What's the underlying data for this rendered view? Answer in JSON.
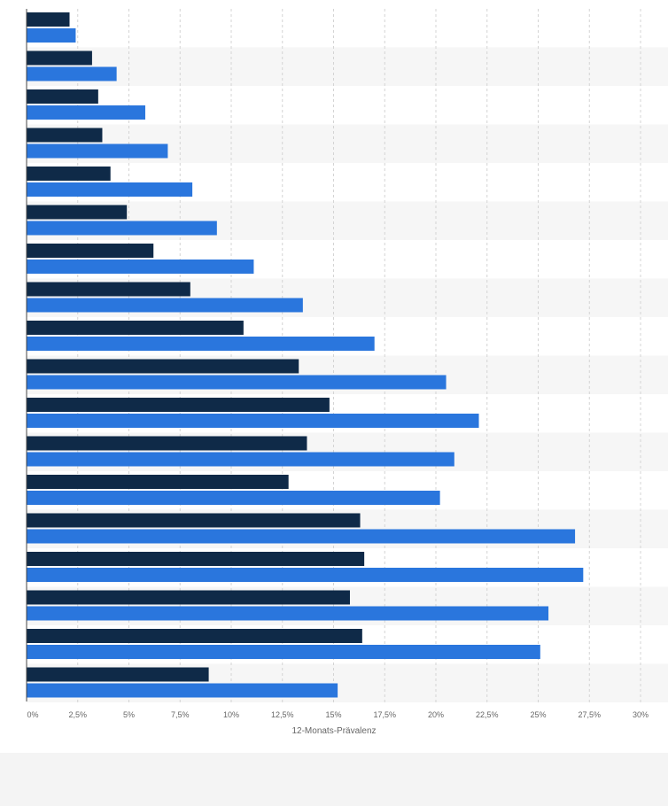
{
  "chart_data": {
    "type": "bar",
    "orientation": "horizontal",
    "xlabel": "12-Monats-Prävalenz",
    "xlim": [
      0,
      30
    ],
    "x_ticks": [
      "0%",
      "2,5%",
      "5%",
      "7,5%",
      "10%",
      "12,5%",
      "15%",
      "17,5%",
      "20%",
      "22,5%",
      "25%",
      "27,5%",
      "30%"
    ],
    "grid": true,
    "categories": [
      "",
      "",
      "",
      "",
      "",
      "",
      "",
      "",
      "",
      "",
      "",
      "",
      "",
      "",
      "",
      "",
      "",
      ""
    ],
    "series": [
      {
        "color": "#0f2a48",
        "values": [
          2.1,
          3.2,
          3.5,
          3.7,
          4.1,
          4.9,
          6.2,
          8.0,
          10.6,
          13.3,
          14.8,
          13.7,
          12.8,
          16.3,
          16.5,
          15.8,
          16.4,
          8.9
        ]
      },
      {
        "color": "#2a76dd",
        "values": [
          2.4,
          4.4,
          5.8,
          6.9,
          8.1,
          9.3,
          11.1,
          13.5,
          17.0,
          20.5,
          22.1,
          20.9,
          20.2,
          26.8,
          27.2,
          25.5,
          25.1,
          15.2
        ]
      }
    ]
  }
}
